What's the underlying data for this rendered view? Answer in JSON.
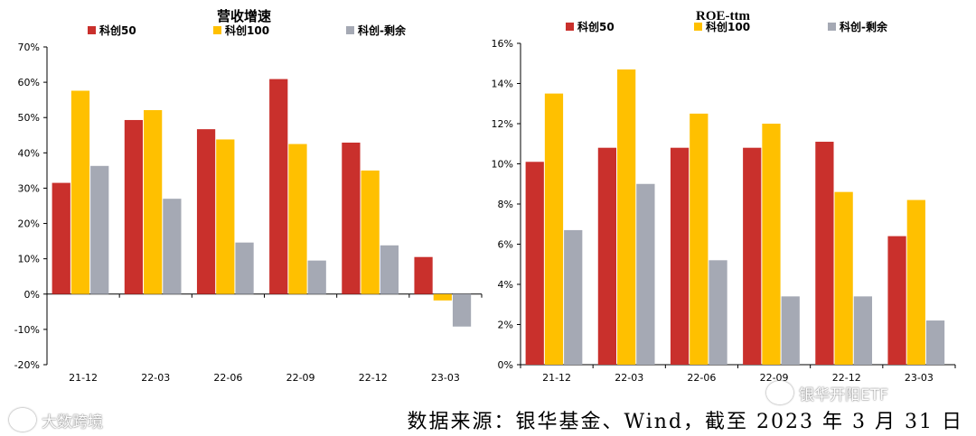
{
  "chart_data": [
    {
      "type": "bar",
      "title": "营收增速",
      "categories": [
        "21-12",
        "22-03",
        "22-06",
        "22-09",
        "22-12",
        "23-03"
      ],
      "series": [
        {
          "name": "科创50",
          "color": "#C9302C",
          "values": [
            31.5,
            49.3,
            46.7,
            60.9,
            42.9,
            10.5
          ]
        },
        {
          "name": "科创100",
          "color": "#FFC000",
          "values": [
            57.6,
            52.1,
            43.8,
            42.5,
            35.0,
            -1.8
          ]
        },
        {
          "name": "科创-剩余",
          "color": "#A5A9B4",
          "values": [
            36.3,
            27.0,
            14.6,
            9.5,
            13.8,
            -9.2
          ]
        }
      ],
      "ylim": [
        -20,
        70
      ],
      "yticks": [
        -20,
        -10,
        0,
        10,
        20,
        30,
        40,
        50,
        60,
        70
      ],
      "ytick_labels": [
        "-20%",
        "-10%",
        "0%",
        "10%",
        "20%",
        "30%",
        "40%",
        "50%",
        "60%",
        "70%"
      ]
    },
    {
      "type": "bar",
      "title": "ROE-ttm",
      "categories": [
        "21-12",
        "22-03",
        "22-06",
        "22-09",
        "22-12",
        "23-03"
      ],
      "series": [
        {
          "name": "科创50",
          "color": "#C9302C",
          "values": [
            10.1,
            10.8,
            10.8,
            10.8,
            11.1,
            6.4
          ]
        },
        {
          "name": "科创100",
          "color": "#FFC000",
          "values": [
            13.5,
            14.7,
            12.5,
            12.0,
            8.6,
            8.2
          ]
        },
        {
          "name": "科创-剩余",
          "color": "#A5A9B4",
          "values": [
            6.7,
            9.0,
            5.2,
            3.4,
            3.4,
            2.2
          ]
        }
      ],
      "ylim": [
        0,
        16
      ],
      "yticks": [
        0,
        2,
        4,
        6,
        8,
        10,
        12,
        14,
        16
      ],
      "ytick_labels": [
        "0%",
        "2%",
        "4%",
        "6%",
        "8%",
        "10%",
        "12%",
        "14%",
        "16%"
      ]
    }
  ],
  "source_text": "数据来源：银华基金、Wind，截至 2023 年 3 月 31 日",
  "watermark_left": "大数跨境",
  "watermark_right": "银华开阳ETF"
}
